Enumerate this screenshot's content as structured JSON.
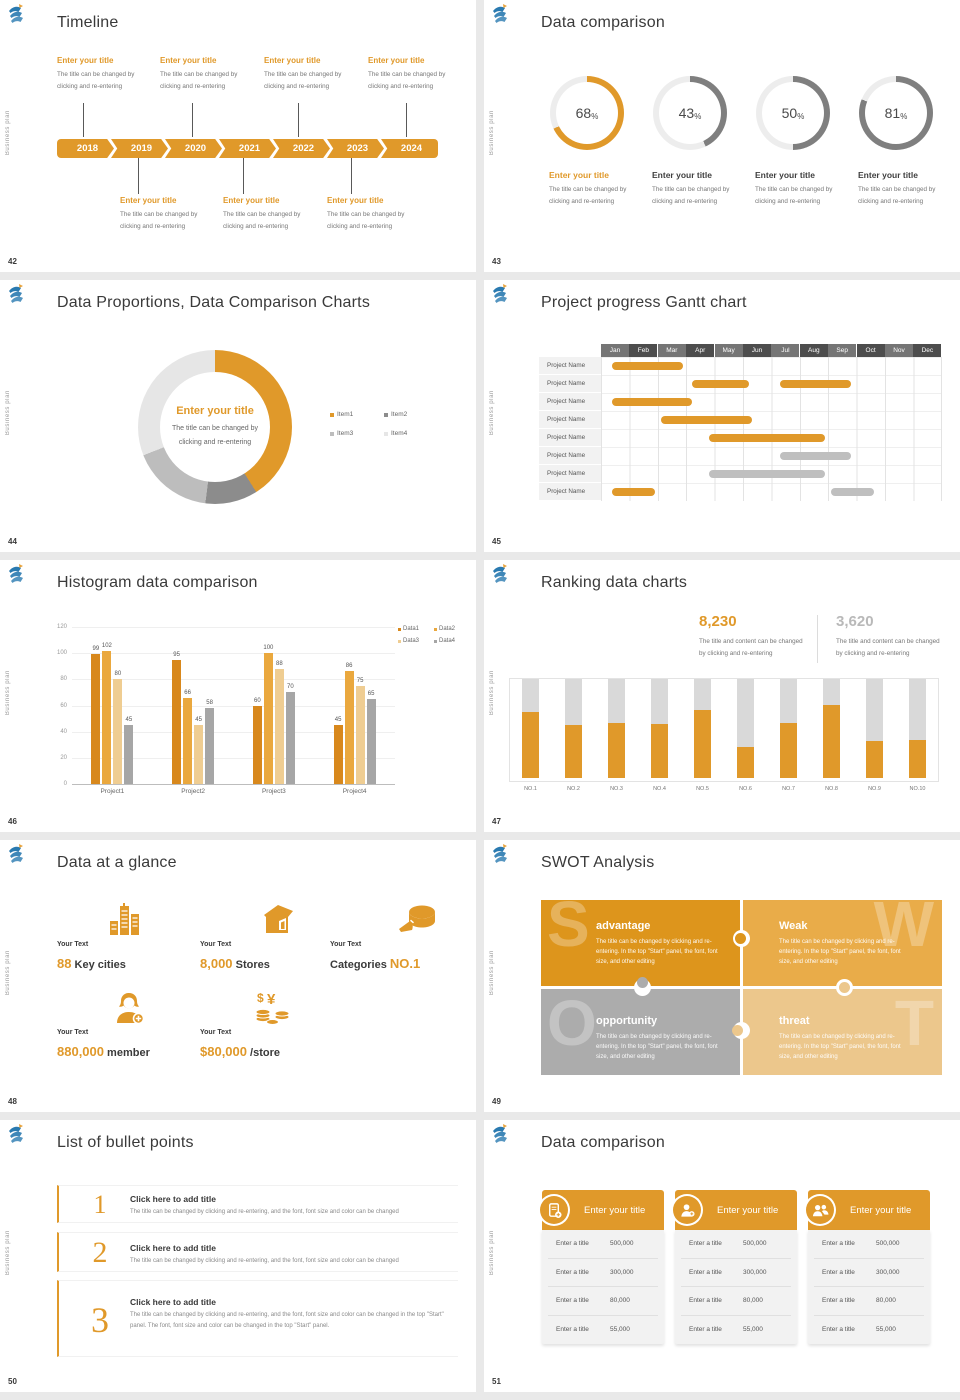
{
  "common": {
    "sidebar_text": "Business plan",
    "accent": "#E0992A"
  },
  "slides": {
    "timeline": {
      "page": "42",
      "title": "Timeline",
      "years": [
        "2018",
        "2019",
        "2020",
        "2021",
        "2022",
        "2023",
        "2024"
      ],
      "item_title": "Enter your title",
      "item_body_lines": [
        "The title can be changed by",
        "clicking and re-entering"
      ]
    },
    "rings": {
      "page": "43",
      "title": "Data comparison",
      "percent_sign": "%",
      "item_title": "Enter your title",
      "item_body_lines": [
        "The title can be changed by",
        "clicking and re-entering"
      ],
      "track_color": "#EDEDED",
      "items": [
        {
          "value": 68,
          "ring_color": "#E0992A",
          "title_color": "#E0992A"
        },
        {
          "value": 43,
          "ring_color": "#7F7F7F",
          "title_color": "#3F3F3F"
        },
        {
          "value": 50,
          "ring_color": "#7F7F7F",
          "title_color": "#3F3F3F"
        },
        {
          "value": 81,
          "ring_color": "#7F7F7F",
          "title_color": "#3F3F3F"
        }
      ]
    },
    "donut": {
      "page": "44",
      "title": "Data Proportions, Data Comparison Charts",
      "center_title": "Enter your title",
      "center_body_lines": [
        "The title can be changed by",
        "clicking and re-entering"
      ],
      "chart": {
        "type": "pie",
        "labels": [
          "Item1",
          "Item2",
          "Item3",
          "Item4"
        ],
        "values": [
          41,
          11,
          17,
          31
        ],
        "colors": [
          "#E0992A",
          "#8C8C8C",
          "#BDBDBD",
          "#E6E6E6"
        ]
      }
    },
    "gantt": {
      "page": "45",
      "title": "Project progress Gantt chart",
      "months": [
        "Jan",
        "Feb",
        "Mar",
        "Apr",
        "May",
        "Jun",
        "Jul",
        "Aug",
        "Sep",
        "Oct",
        "Nov",
        "Dec"
      ],
      "row_label": "Project Name",
      "bar_colors": {
        "o": "#E0992A",
        "g": "#BFBFBF"
      },
      "rows": [
        [
          {
            "start": 0.4,
            "end": 2.9,
            "c": "o"
          }
        ],
        [
          {
            "start": 3.2,
            "end": 5.2,
            "c": "o"
          },
          {
            "start": 6.3,
            "end": 8.8,
            "c": "o"
          }
        ],
        [
          {
            "start": 0.4,
            "end": 3.2,
            "c": "o"
          }
        ],
        [
          {
            "start": 2.1,
            "end": 5.3,
            "c": "o"
          }
        ],
        [
          {
            "start": 3.8,
            "end": 7.9,
            "c": "o"
          }
        ],
        [
          {
            "start": 6.3,
            "end": 8.8,
            "c": "g"
          }
        ],
        [
          {
            "start": 3.8,
            "end": 7.9,
            "c": "g"
          }
        ],
        [
          {
            "start": 0.4,
            "end": 1.9,
            "c": "o"
          },
          {
            "start": 8.1,
            "end": 9.6,
            "c": "g"
          }
        ]
      ]
    },
    "histogram": {
      "page": "46",
      "title": "Histogram data comparison",
      "chart": {
        "type": "bar",
        "categories": [
          "Project1",
          "Project2",
          "Project3",
          "Project4"
        ],
        "series": [
          {
            "name": "Data1",
            "color": "#D8881C",
            "values": [
              99,
              95,
              60,
              45
            ]
          },
          {
            "name": "Data2",
            "color": "#EAA83E",
            "values": [
              102,
              66,
              100,
              86
            ]
          },
          {
            "name": "Data3",
            "color": "#EFCD92",
            "values": [
              80,
              45,
              88,
              75
            ]
          },
          {
            "name": "Data4",
            "color": "#A6A6A6",
            "values": [
              45,
              58,
              70,
              65
            ]
          }
        ],
        "ylim": [
          0,
          120
        ],
        "ytick": 20
      }
    },
    "ranking": {
      "page": "47",
      "title": "Ranking data charts",
      "stats": [
        {
          "value": "8,230",
          "color": "#E0992A",
          "body_lines": [
            "The title and content can be changed",
            "by clicking and re-entering"
          ]
        },
        {
          "value": "3,620",
          "color": "#B9B9B9",
          "body_lines": [
            "The title and content can be changed",
            "by clicking and re-entering"
          ]
        }
      ],
      "chart": {
        "type": "bar",
        "categories": [
          "NO.1",
          "NO.2",
          "NO.3",
          "NO.4",
          "NO.5",
          "NO.6",
          "NO.7",
          "NO.8",
          "NO.9",
          "NO.10"
        ],
        "values": [
          66,
          53,
          55,
          54,
          68,
          31,
          55,
          73,
          37,
          38
        ],
        "bar_color": "#E0992A",
        "track_color": "#D9D9D9"
      }
    },
    "glance": {
      "page": "48",
      "title": "Data at a glance",
      "label": "Your Text",
      "items": [
        {
          "icon": "city-icon",
          "pre": "",
          "num": "88",
          "post": " Key cities"
        },
        {
          "icon": "store-icon",
          "pre": "",
          "num": "8,000",
          "post": " Stores"
        },
        {
          "icon": "cheese-icon",
          "pre": "Categories ",
          "num": "NO.1",
          "post": ""
        },
        {
          "icon": "member-icon",
          "pre": "",
          "num": "880,000",
          "post": " member"
        },
        {
          "icon": "coins-icon",
          "pre": "",
          "num": "$80,000",
          "post": " /store"
        }
      ]
    },
    "swot": {
      "page": "49",
      "title": "SWOT Analysis",
      "cells": [
        {
          "letter": "S",
          "title": "advantage",
          "color": "#DD951C",
          "body": "The title can be changed by clicking and re-entering. In the top \"Start\" panel, the font, font size, and other editing"
        },
        {
          "letter": "W",
          "title": "Weak",
          "color": "#E9AC49",
          "body": "The title can be changed by clicking and re-entering. In the top \"Start\" panel, the font, font size, and other editing"
        },
        {
          "letter": "O",
          "title": "opportunity",
          "color": "#ACACAC",
          "body": "The title can be changed by clicking and re-entering. In the top \"Start\" panel, the font, font size, and other editing"
        },
        {
          "letter": "T",
          "title": "threat",
          "color": "#ECC78C",
          "body": "The title can be changed by clicking and re-entering. In the top \"Start\" panel, the font, font size, and other editing"
        }
      ]
    },
    "bullets": {
      "page": "50",
      "title": "List of bullet points",
      "items": [
        {
          "num": "1",
          "title": "Click here to add title",
          "body": "The title can be changed by clicking and re-entering, and the font, font size and color can be changed"
        },
        {
          "num": "2",
          "title": "Click here to add title",
          "body": "The title can be changed by clicking and re-entering, and the font, font size and color can be changed"
        },
        {
          "num": "3",
          "title": "Click here to add title",
          "body": "The title can be changed by clicking and re-entering, and the font, font size and color can be changed in the top \"Start\" panel. The font, font size and color can be changed in the top \"Start\" panel."
        }
      ]
    },
    "comparison": {
      "page": "51",
      "title": "Data comparison",
      "header_title": "Enter your title",
      "cards": [
        {
          "icon": "doc-plus-icon"
        },
        {
          "icon": "person-plus-icon"
        },
        {
          "icon": "people-icon"
        }
      ],
      "row_label": "Enter a title",
      "values": [
        "500,000",
        "300,000",
        "80,000",
        "55,000"
      ]
    }
  }
}
